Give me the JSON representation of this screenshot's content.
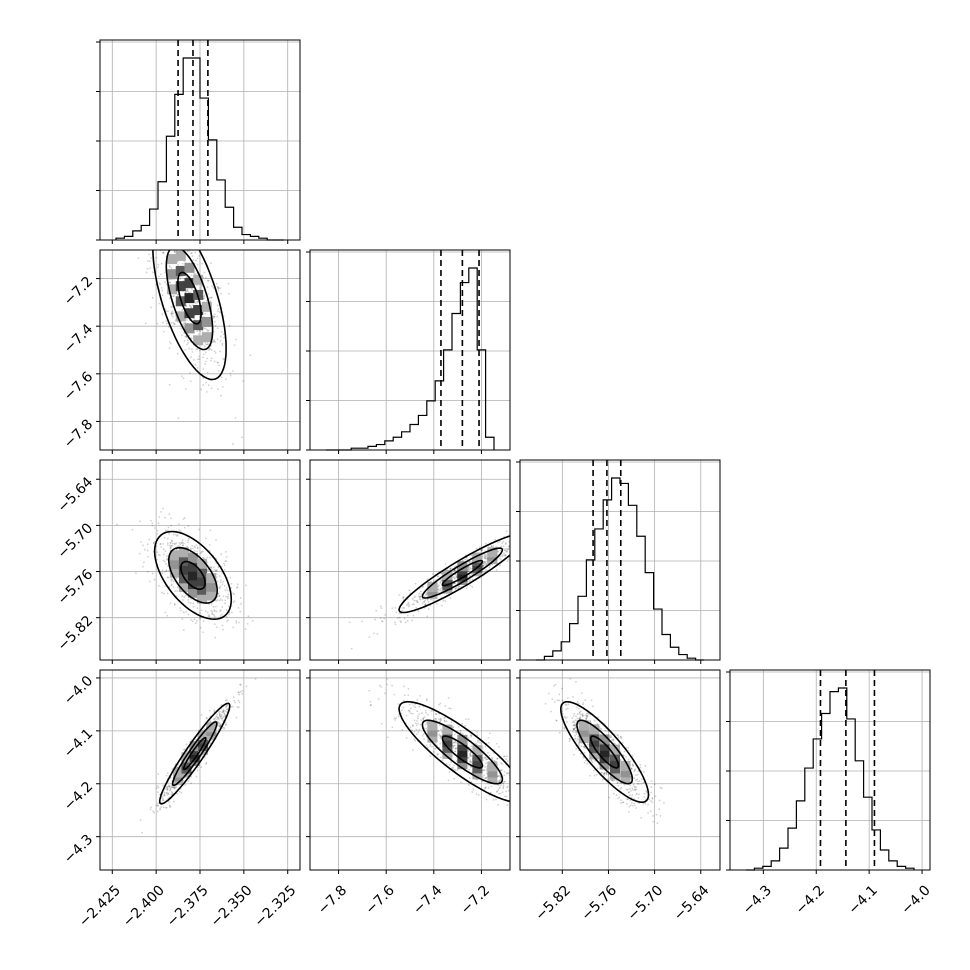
{
  "chart_data": {
    "type": "corner",
    "parameters": [
      {
        "range": [
          -2.432,
          -2.318
        ],
        "ticks": [
          -2.425,
          -2.4,
          -2.375,
          -2.35,
          -2.325
        ],
        "tick_labels": [
          "−2.425",
          "−2.400",
          "−2.375",
          "−2.350",
          "−2.325"
        ],
        "quantiles": [
          -2.3875,
          -2.379,
          -2.3705
        ]
      },
      {
        "range": [
          -7.92,
          -7.08
        ],
        "ticks": [
          -7.8,
          -7.6,
          -7.4,
          -7.2
        ],
        "tick_labels": [
          "−7.8",
          "−7.6",
          "−7.4",
          "−7.2"
        ],
        "quantiles": [
          -7.37,
          -7.28,
          -7.21
        ]
      },
      {
        "range": [
          -5.875,
          -5.615
        ],
        "ticks": [
          -5.82,
          -5.76,
          -5.7,
          -5.64
        ],
        "tick_labels": [
          "−5.82",
          "−5.76",
          "−5.70",
          "−5.64"
        ],
        "quantiles": [
          -5.78,
          -5.762,
          -5.744
        ]
      },
      {
        "range": [
          -4.363,
          -3.985
        ],
        "ticks": [
          -4.3,
          -4.2,
          -4.1,
          -4.0
        ],
        "tick_labels": [
          "−4.3",
          "−4.2",
          "−4.1",
          "−4.0"
        ],
        "quantiles": [
          -4.192,
          -4.144,
          -4.09
        ]
      }
    ],
    "histograms": [
      {
        "counts": [
          0.01,
          0.02,
          0.05,
          0.08,
          0.17,
          0.32,
          0.57,
          0.8,
          1.0,
          1.0,
          0.78,
          0.55,
          0.33,
          0.18,
          0.07,
          0.03,
          0.02,
          0.01,
          0.0,
          0.0
        ]
      },
      {
        "counts": [
          0.0,
          0.0,
          0.0,
          0.01,
          0.01,
          0.02,
          0.03,
          0.05,
          0.07,
          0.1,
          0.14,
          0.19,
          0.27,
          0.38,
          0.55,
          0.75,
          0.92,
          1.0,
          0.55,
          0.07
        ]
      },
      {
        "counts": [
          0.0,
          0.02,
          0.05,
          0.1,
          0.2,
          0.35,
          0.55,
          0.72,
          0.88,
          1.0,
          0.97,
          0.85,
          0.68,
          0.48,
          0.28,
          0.14,
          0.07,
          0.03,
          0.01,
          0.0
        ]
      },
      {
        "counts": [
          0.0,
          0.01,
          0.02,
          0.05,
          0.12,
          0.23,
          0.38,
          0.56,
          0.72,
          0.86,
          0.98,
          1.0,
          0.83,
          0.6,
          0.4,
          0.22,
          0.11,
          0.05,
          0.02,
          0.01
        ]
      }
    ],
    "scatter": [
      {
        "y": 1,
        "x": 0,
        "center": [
          -2.381,
          -7.282
        ],
        "sd": [
          0.011,
          0.18
        ],
        "corr": -0.62
      },
      {
        "y": 2,
        "x": 0,
        "center": [
          -2.379,
          -5.765
        ],
        "sd": [
          0.0115,
          0.03
        ],
        "corr": -0.55
      },
      {
        "y": 2,
        "x": 1,
        "center": [
          -7.28,
          -5.762
        ],
        "sd": [
          0.14,
          0.027
        ],
        "corr": 0.93
      },
      {
        "y": 3,
        "x": 0,
        "center": [
          -2.378,
          -4.143
        ],
        "sd": [
          0.0105,
          0.05
        ],
        "corr": 0.95
      },
      {
        "y": 3,
        "x": 1,
        "center": [
          -7.28,
          -4.14
        ],
        "sd": [
          0.14,
          0.05
        ],
        "corr": -0.86
      },
      {
        "y": 3,
        "x": 2,
        "center": [
          -5.765,
          -4.14
        ],
        "sd": [
          0.03,
          0.05
        ],
        "corr": -0.85
      }
    ],
    "grid": true
  }
}
